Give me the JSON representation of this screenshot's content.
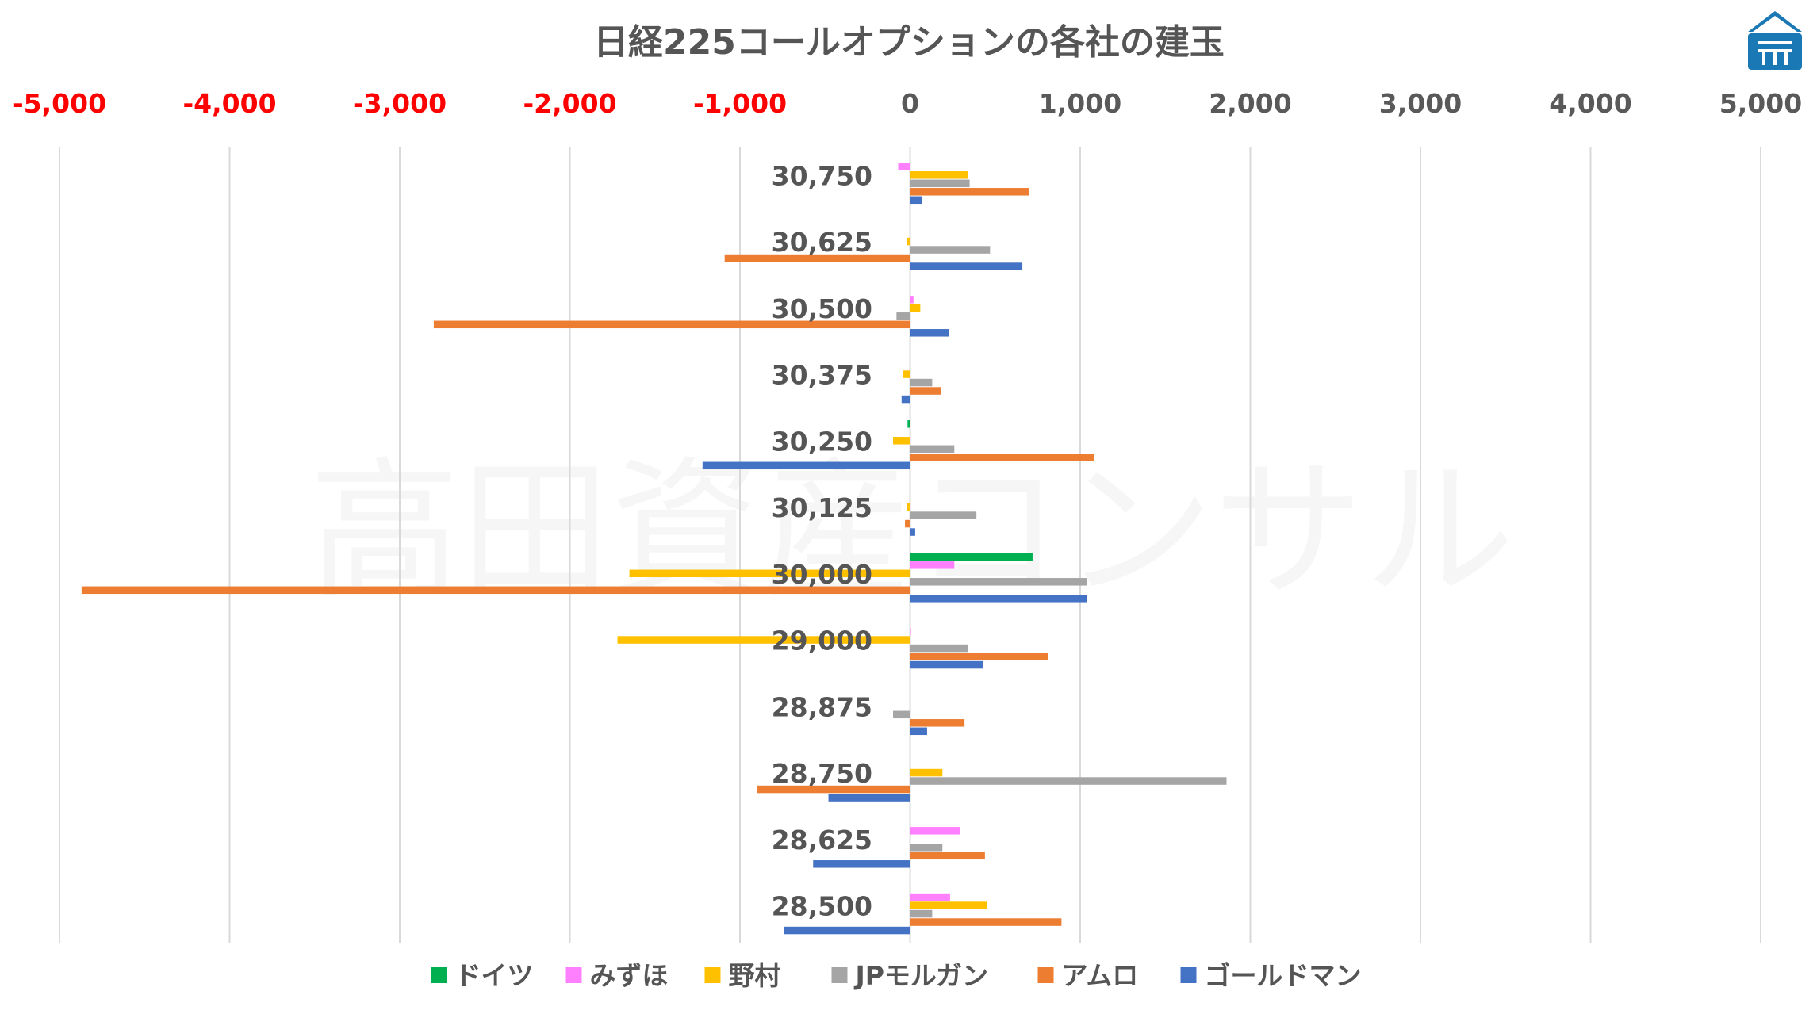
{
  "chart_data": {
    "type": "bar",
    "orientation": "horizontal",
    "title": "日経225コールオプションの各社の建玉",
    "watermark": "高田資産コンサル",
    "xlim": [
      -5000,
      5000
    ],
    "x_ticks": [
      -5000,
      -4000,
      -3000,
      -2000,
      -1000,
      0,
      1000,
      2000,
      3000,
      4000,
      5000
    ],
    "x_tick_labels": [
      "-5,000",
      "-4,000",
      "-3,000",
      "-2,000",
      "-1,000",
      "0",
      "1,000",
      "2,000",
      "3,000",
      "4,000",
      "5,000"
    ],
    "negative_tick_color": "#ff0000",
    "positive_tick_color": "#595959",
    "grid": "vertical",
    "legend_position": "bottom",
    "categories": [
      "30,750",
      "30,625",
      "30,500",
      "30,375",
      "30,250",
      "30,125",
      "30,000",
      "29,000",
      "28,875",
      "28,750",
      "28,625",
      "28,500"
    ],
    "series": [
      {
        "name": "ドイツ",
        "color": "#00b050",
        "values": [
          0,
          0,
          0,
          0,
          -15,
          0,
          720,
          0,
          0,
          0,
          0,
          0
        ]
      },
      {
        "name": "みずほ",
        "color": "#ff80ff",
        "values": [
          -70,
          0,
          20,
          0,
          0,
          0,
          260,
          5,
          0,
          0,
          295,
          235
        ]
      },
      {
        "name": "野村",
        "color": "#ffc000",
        "values": [
          340,
          -20,
          60,
          -40,
          -100,
          -20,
          -1650,
          -1720,
          0,
          190,
          0,
          450
        ]
      },
      {
        "name": "JPモルガン",
        "color": "#a5a5a5",
        "values": [
          350,
          470,
          -80,
          130,
          260,
          390,
          1040,
          340,
          -100,
          1860,
          190,
          130
        ]
      },
      {
        "name": "アムロ",
        "color": "#ed7d31",
        "values": [
          700,
          -1090,
          -2800,
          180,
          1080,
          -30,
          -4870,
          810,
          320,
          -900,
          440,
          890
        ]
      },
      {
        "name": "ゴールドマン",
        "color": "#4472c4",
        "values": [
          70,
          660,
          230,
          -50,
          -1220,
          30,
          1040,
          430,
          100,
          -480,
          -570,
          -740
        ]
      }
    ]
  }
}
